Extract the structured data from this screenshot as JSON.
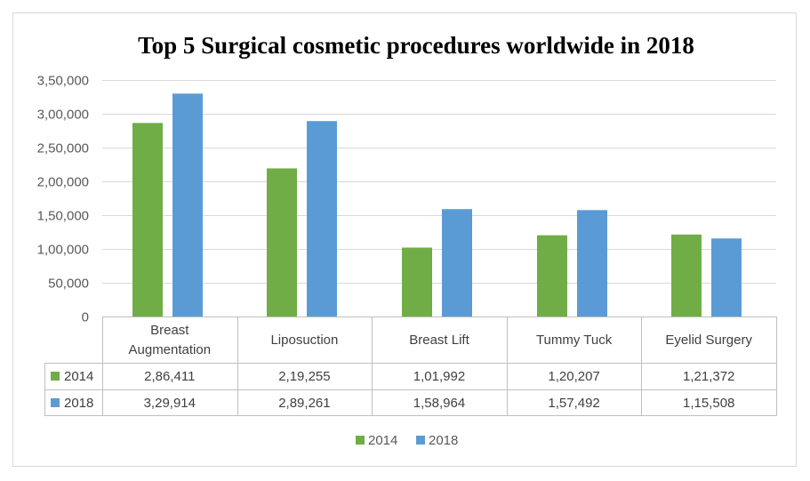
{
  "colors": {
    "series_2014": "#70AD47",
    "series_2018": "#5B9BD5",
    "grid": "#D9D9D9",
    "border": "#BFBFBF",
    "text": "#404040"
  },
  "chart_data": {
    "type": "bar",
    "title": "Top 5 Surgical  cosmetic  procedures  worldwide  in 2018",
    "xlabel": "",
    "ylabel": "",
    "ylim": [
      0,
      350000
    ],
    "yticks": [
      0,
      50000,
      100000,
      150000,
      200000,
      250000,
      300000,
      350000
    ],
    "ytick_labels": [
      "0",
      "50,000",
      "1,00,000",
      "1,50,000",
      "2,00,000",
      "2,50,000",
      "3,00,000",
      "3,50,000"
    ],
    "grid": true,
    "legend_position": "bottom",
    "categories": [
      "Breast Augmentation",
      "Liposuction",
      "Breast Lift",
      "Tummy Tuck",
      "Eyelid Surgery"
    ],
    "category_lines": [
      [
        "Breast",
        "Augmentation"
      ],
      [
        "Liposuction"
      ],
      [
        "Breast Lift"
      ],
      [
        "Tummy Tuck"
      ],
      [
        "Eyelid Surgery"
      ]
    ],
    "series": [
      {
        "name": "2014",
        "color": "#70AD47",
        "values": [
          286411,
          219255,
          101992,
          120207,
          121372
        ],
        "labels": [
          "2,86,411",
          "2,19,255",
          "1,01,992",
          "1,20,207",
          "1,21,372"
        ]
      },
      {
        "name": "2018",
        "color": "#5B9BD5",
        "values": [
          329914,
          289261,
          158964,
          157492,
          115508
        ],
        "labels": [
          "3,29,914",
          "2,89,261",
          "1,58,964",
          "1,57,492",
          "1,15,508"
        ]
      }
    ]
  }
}
